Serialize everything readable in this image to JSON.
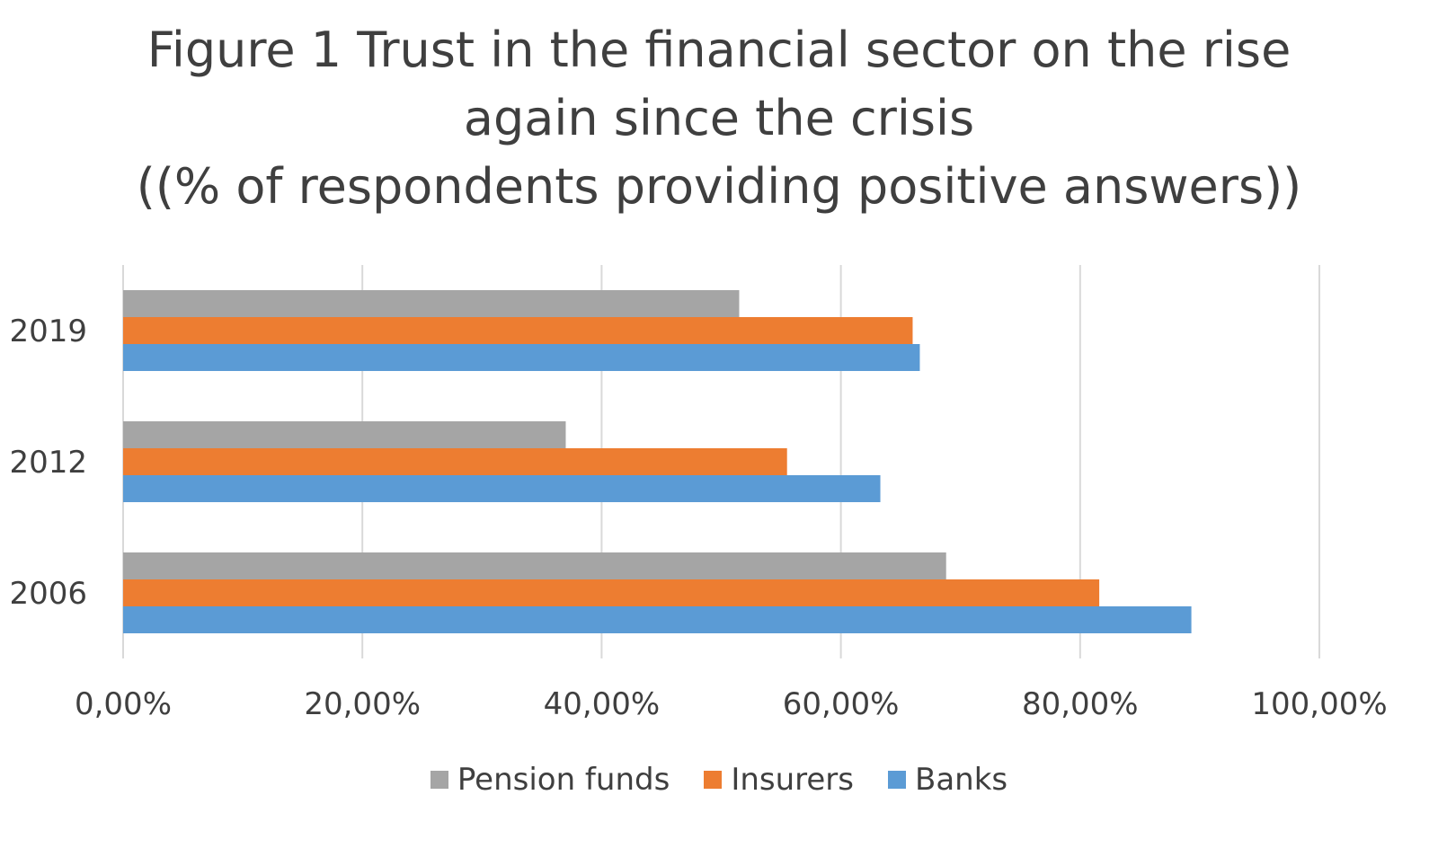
{
  "chart_data": {
    "type": "bar",
    "orientation": "horizontal",
    "title_lines": [
      "Figure 1 Trust in the financial sector on the rise",
      "again since the crisis",
      "((% of respondents providing positive answers))"
    ],
    "categories": [
      "2019",
      "2012",
      "2006"
    ],
    "series": [
      {
        "name": "Pension funds",
        "color": "#a5a5a5",
        "values": [
          51.5,
          37.0,
          68.8
        ]
      },
      {
        "name": "Insurers",
        "color": "#ed7d31",
        "values": [
          66.0,
          55.5,
          81.6
        ]
      },
      {
        "name": "Banks",
        "color": "#5b9bd5",
        "values": [
          66.6,
          63.3,
          89.3
        ]
      }
    ],
    "xlim": [
      0,
      100
    ],
    "x_ticks": [
      0,
      20,
      40,
      60,
      80,
      100
    ],
    "x_tick_labels": [
      "0,00%",
      "20,00%",
      "40,00%",
      "60,00%",
      "80,00%",
      "100,00%"
    ],
    "grid": "vertical",
    "legend_position": "bottom",
    "legend_order": [
      "Pension funds",
      "Insurers",
      "Banks"
    ]
  }
}
